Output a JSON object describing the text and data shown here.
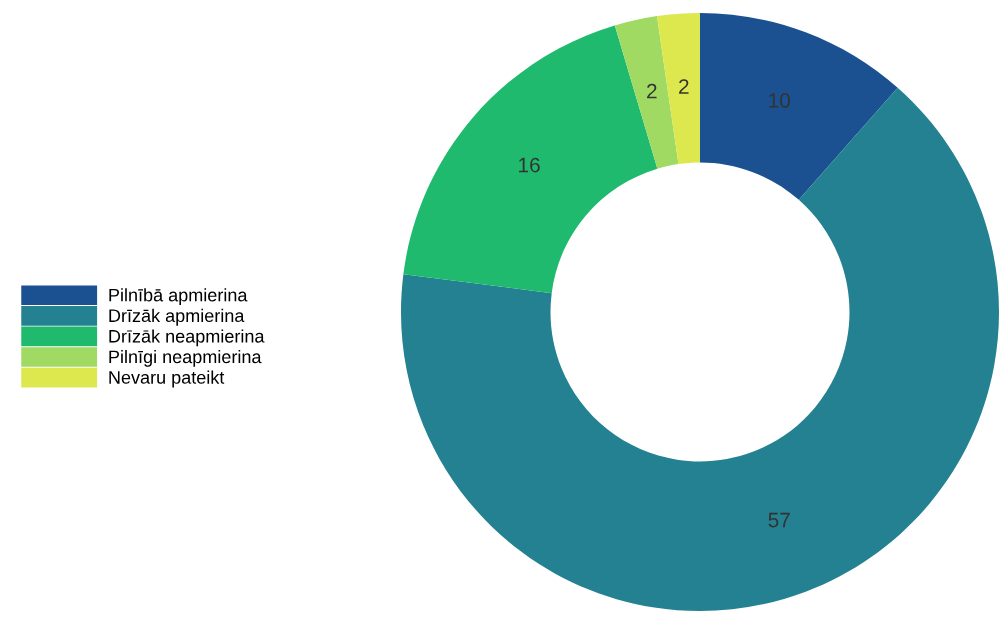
{
  "chart_data": {
    "type": "donut",
    "categories": [
      "Pilnībā apmierina",
      "Drīzāk apmierina",
      "Drīzāk neapmierina",
      "Pilnīgi neapmierina",
      "Nevaru pateikt"
    ],
    "values": [
      10,
      57,
      16,
      2,
      2
    ],
    "colors": [
      "#1b5190",
      "#238191",
      "#1fba6e",
      "#a0da63",
      "#dde84e"
    ],
    "data_labels": true,
    "legend": "left"
  }
}
